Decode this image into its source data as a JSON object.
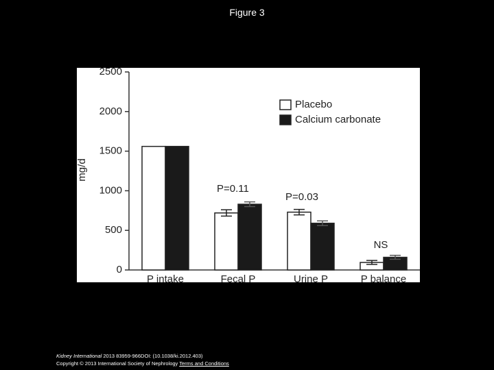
{
  "header": {
    "title": "Figure 3"
  },
  "chart_data": {
    "type": "bar",
    "ylabel": "mg/d",
    "categories": [
      "P intake",
      "Fecal P",
      "Urine P",
      "P balance"
    ],
    "series": [
      {
        "name": "Placebo",
        "color": "#ffffff",
        "values": [
          1560,
          720,
          730,
          95
        ],
        "errors": [
          0,
          40,
          35,
          25
        ]
      },
      {
        "name": "Calcium carbonate",
        "color": "#1a1a1a",
        "values": [
          1560,
          830,
          590,
          160
        ],
        "errors": [
          0,
          30,
          30,
          25
        ]
      }
    ],
    "ylim": [
      0,
      2500
    ],
    "yticks": [
      0,
      500,
      1000,
      1500,
      2000,
      2500
    ],
    "legend": "upper right",
    "annotations": [
      "P=0.11",
      "P=0.03",
      "NS"
    ]
  },
  "footer": {
    "journal": "Kidney International",
    "citation": "2013 83959-966DOI: (10.1038/ki.2012.403)",
    "copyright": "Copyright © 2013 International Society of Nephrology",
    "link": "Terms and Conditions"
  }
}
